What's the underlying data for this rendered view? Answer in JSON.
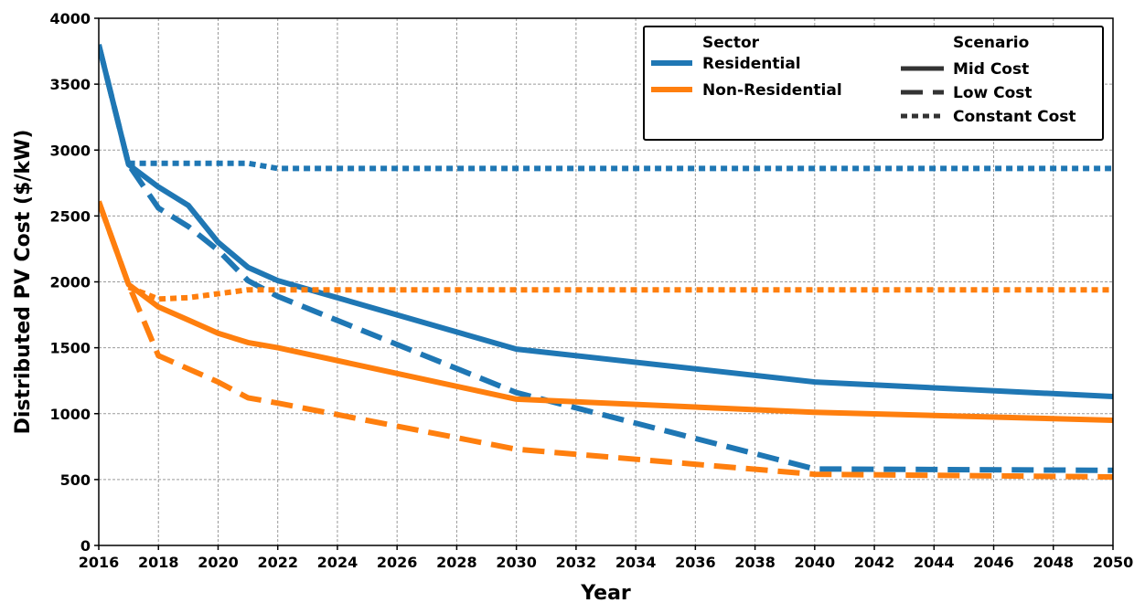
{
  "chart_data": {
    "type": "line",
    "title": "",
    "xlabel": "Year",
    "ylabel": "Distributed PV Cost ($/kW)",
    "xlim": [
      2016,
      2050
    ],
    "ylim": [
      0,
      4000
    ],
    "xticks": [
      "2016",
      "2018",
      "2020",
      "2022",
      "2024",
      "2026",
      "2028",
      "2030",
      "2032",
      "2034",
      "2036",
      "2038",
      "2040",
      "2042",
      "2044",
      "2046",
      "2048",
      "2050"
    ],
    "yticks": [
      "0",
      "500",
      "1000",
      "1500",
      "2000",
      "2500",
      "3000",
      "3500",
      "4000"
    ],
    "grid": true,
    "legend": {
      "placement": "top-right",
      "sector_title": "Sector",
      "scenario_title": "Scenario",
      "sectors": [
        {
          "label": "Residential",
          "color": "#1f77b4"
        },
        {
          "label": "Non-Residential",
          "color": "#ff7f0e"
        }
      ],
      "scenarios": [
        {
          "label": "Mid Cost",
          "style": "solid"
        },
        {
          "label": "Low Cost",
          "style": "dashed"
        },
        {
          "label": "Constant Cost",
          "style": "dotted"
        }
      ]
    },
    "series": [
      {
        "sector": "Residential",
        "scenario": "Mid Cost",
        "color": "#1f77b4",
        "style": "solid",
        "x": [
          2016,
          2017,
          2018,
          2019,
          2020,
          2021,
          2022,
          2030,
          2040,
          2050
        ],
        "y": [
          3800,
          2890,
          2720,
          2580,
          2300,
          2110,
          2010,
          1490,
          1240,
          1130
        ]
      },
      {
        "sector": "Residential",
        "scenario": "Low Cost",
        "color": "#1f77b4",
        "style": "dashed",
        "x": [
          2016,
          2017,
          2018,
          2019,
          2020,
          2021,
          2022,
          2030,
          2040,
          2050
        ],
        "y": [
          3800,
          2890,
          2560,
          2420,
          2240,
          2010,
          1890,
          1160,
          580,
          570
        ]
      },
      {
        "sector": "Residential",
        "scenario": "Constant Cost",
        "color": "#1f77b4",
        "style": "dotted",
        "x": [
          2017,
          2021,
          2022,
          2050
        ],
        "y": [
          2900,
          2900,
          2860,
          2860
        ]
      },
      {
        "sector": "Non-Residential",
        "scenario": "Mid Cost",
        "color": "#ff7f0e",
        "style": "solid",
        "x": [
          2016,
          2017,
          2018,
          2019,
          2020,
          2021,
          2022,
          2030,
          2040,
          2050
        ],
        "y": [
          2610,
          1980,
          1810,
          1710,
          1610,
          1540,
          1500,
          1110,
          1010,
          950
        ]
      },
      {
        "sector": "Non-Residential",
        "scenario": "Low Cost",
        "color": "#ff7f0e",
        "style": "dashed",
        "x": [
          2016,
          2017,
          2018,
          2019,
          2020,
          2021,
          2022,
          2030,
          2040,
          2050
        ],
        "y": [
          2610,
          1980,
          1440,
          1340,
          1240,
          1120,
          1080,
          730,
          540,
          520
        ]
      },
      {
        "sector": "Non-Residential",
        "scenario": "Constant Cost",
        "color": "#ff7f0e",
        "style": "dotted",
        "x": [
          2017,
          2018,
          2019,
          2020,
          2021,
          2050
        ],
        "y": [
          1960,
          1870,
          1880,
          1910,
          1940,
          1940
        ]
      }
    ]
  }
}
